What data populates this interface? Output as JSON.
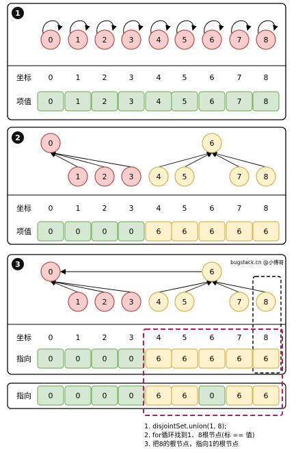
{
  "watermark": "bugstack.cn @小傅哥",
  "panels": [
    {
      "badge": "1",
      "nodes": [
        "0",
        "1",
        "2",
        "3",
        "4",
        "5",
        "6",
        "7",
        "8"
      ],
      "index_label": "坐标",
      "indices": [
        "0",
        "1",
        "2",
        "3",
        "4",
        "5",
        "6",
        "7",
        "8"
      ],
      "value_label": "项值",
      "values": [
        "0",
        "1",
        "2",
        "3",
        "4",
        "5",
        "6",
        "7",
        "8"
      ]
    },
    {
      "badge": "2",
      "roots": [
        "0",
        "6"
      ],
      "children": [
        "1",
        "2",
        "3",
        "4",
        "5",
        "7",
        "8"
      ],
      "index_label": "坐标",
      "indices": [
        "0",
        "1",
        "2",
        "3",
        "4",
        "5",
        "6",
        "7",
        "8"
      ],
      "value_label": "项值",
      "values": [
        "0",
        "0",
        "0",
        "0",
        "6",
        "6",
        "6",
        "6",
        "6"
      ]
    },
    {
      "badge": "3",
      "roots": [
        "0",
        "6"
      ],
      "children": [
        "1",
        "2",
        "3",
        "4",
        "5",
        "7",
        "8"
      ],
      "index_label": "坐标",
      "indices": [
        "0",
        "1",
        "2",
        "3",
        "4",
        "5",
        "6",
        "7",
        "8"
      ],
      "value_label": "指向",
      "values": [
        "0",
        "0",
        "0",
        "0",
        "6",
        "6",
        "6",
        "6",
        "6"
      ]
    }
  ],
  "result_row": {
    "label": "指向",
    "values": [
      "0",
      "0",
      "0",
      "0",
      "6",
      "6",
      "0",
      "6",
      "6"
    ]
  },
  "notes": [
    "1. disjointSet.union(1, 8);",
    "2. for循环找到1、8根节点(标 == 值)",
    "3. 把8的根节点，指向1的根节点"
  ],
  "colors": {
    "green_fill": "#d5e8d4",
    "green_stroke": "#82b366",
    "red_fill": "#f8cecc",
    "red_stroke": "#b85450",
    "yellow_fill": "#fff2cc",
    "yellow_stroke": "#d6b656",
    "dashed_box": "#c2185b"
  }
}
